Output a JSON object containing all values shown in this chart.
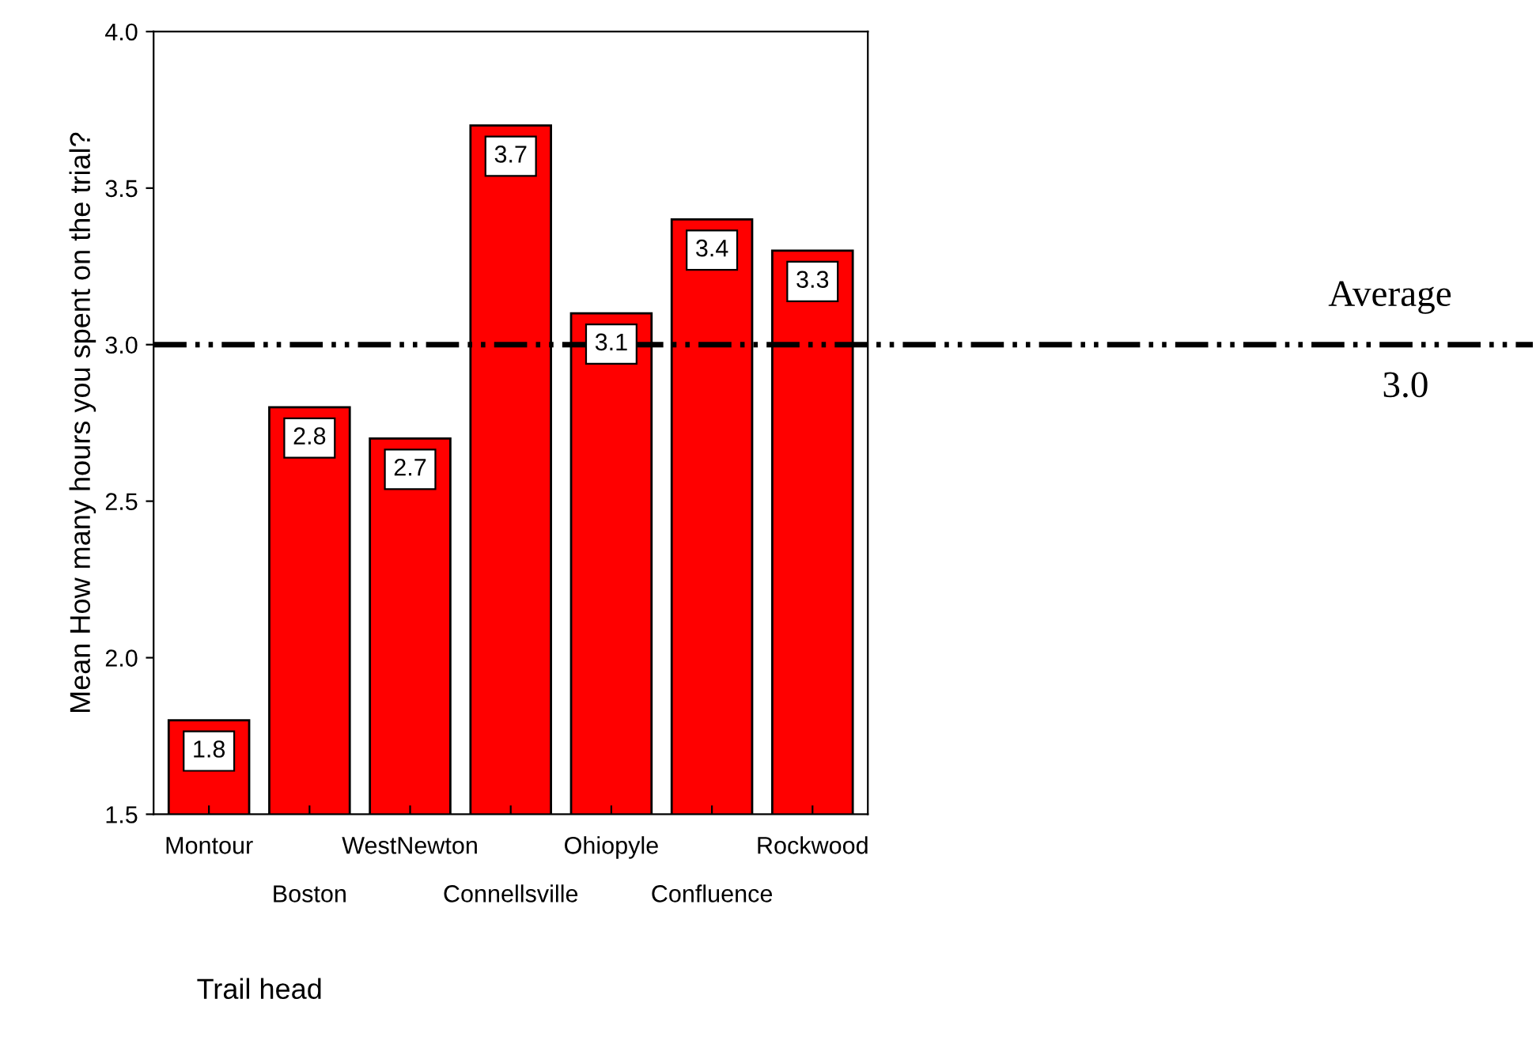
{
  "chart_data": {
    "type": "bar",
    "categories": [
      "Montour",
      "Boston",
      "WestNewton",
      "Connellsville",
      "Ohiopyle",
      "Confluence",
      "Rockwood"
    ],
    "values": [
      1.8,
      2.8,
      2.7,
      3.7,
      3.1,
      3.4,
      3.3
    ],
    "color": "#ff0000",
    "data_labels": true,
    "xlabel": "Trail head",
    "ylabel": "Mean How many hours you spent on the trial?",
    "ylim": [
      1.5,
      4.0
    ],
    "yticks": [
      {
        "value": 1.5,
        "label": "1.5"
      },
      {
        "value": 2.0,
        "label": "2.0"
      },
      {
        "value": 2.5,
        "label": "2.5"
      },
      {
        "value": 3.0,
        "label": "3.0"
      },
      {
        "value": 3.5,
        "label": "3.5"
      },
      {
        "value": 4.0,
        "label": "4.0"
      }
    ],
    "ref_lines": [
      {
        "axis": "y",
        "value": 3.0,
        "label": "Average",
        "color": "#000000",
        "line_style": "dashdot"
      }
    ],
    "annotations": [
      {
        "text": "3.0",
        "y": 3.0
      }
    ],
    "grid": false
  }
}
